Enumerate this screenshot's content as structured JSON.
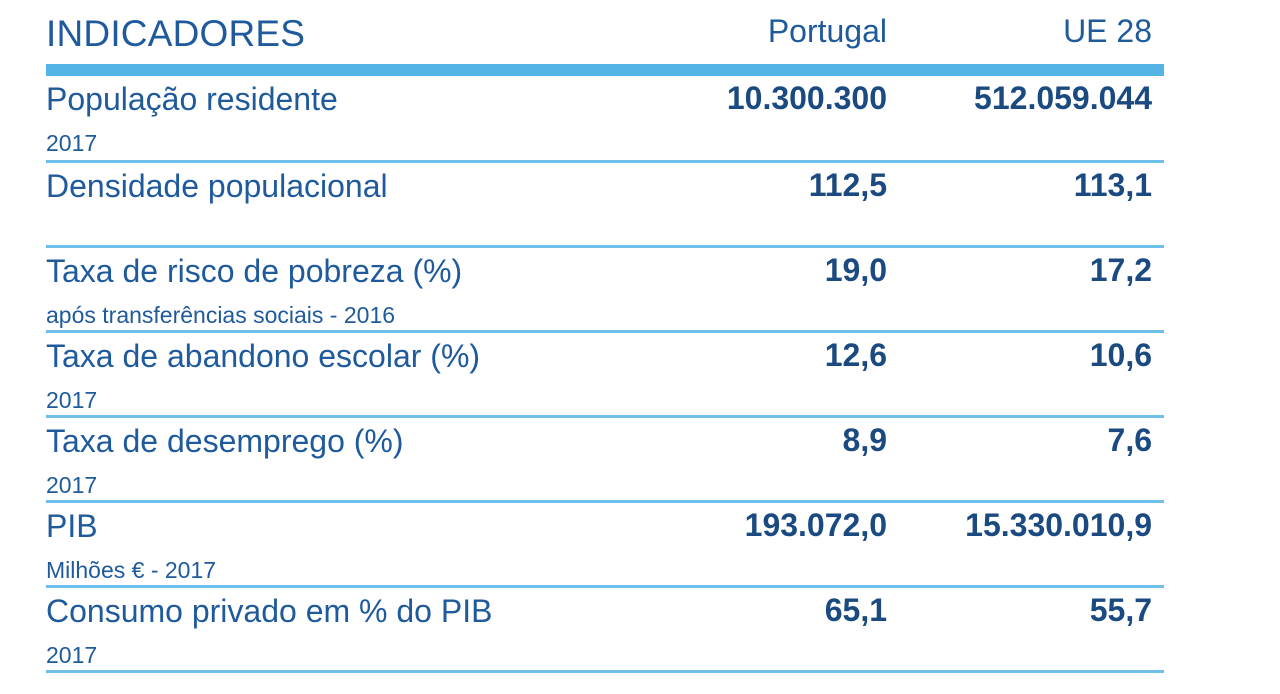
{
  "header": {
    "title": "INDICADORES",
    "col_pt": "Portugal",
    "col_eu": "UE 28"
  },
  "rows": [
    {
      "name": "População residente",
      "sub": "2017",
      "pt": "10.300.300",
      "eu": "512.059.044"
    },
    {
      "name": "Densidade populacional",
      "sub": "",
      "pt": "112,5",
      "eu": "113,1"
    },
    {
      "name": "Taxa de risco de pobreza (%)",
      "sub": "após transferências sociais - 2016",
      "pt": "19,0",
      "eu": "17,2"
    },
    {
      "name": "Taxa de abandono escolar (%)",
      "sub": "2017",
      "pt": "12,6",
      "eu": "10,6"
    },
    {
      "name": "Taxa de desemprego (%)",
      "sub": "2017",
      "pt": "8,9",
      "eu": "7,6"
    },
    {
      "name": "PIB",
      "sub": "Milhões € - 2017",
      "pt": "193.072,0",
      "eu": "15.330.010,9"
    },
    {
      "name": "Consumo privado em % do PIB",
      "sub": "2017",
      "pt": "65,1",
      "eu": "55,7"
    }
  ],
  "colors": {
    "text": "#1f5a9c",
    "rule": "#55b4e6"
  }
}
